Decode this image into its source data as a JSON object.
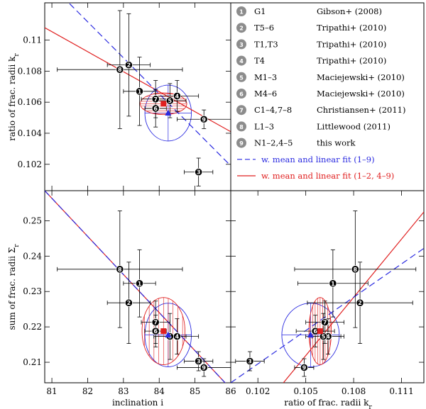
{
  "colors": {
    "fit_all": "#2a2ae0",
    "fit_sub": "#e02020",
    "ellipse_blue": "#2a2ae0",
    "ellipse_red": "#e02020",
    "marker": "#000000",
    "legend_badge": "#8c8c8c"
  },
  "legend": {
    "entries": [
      {
        "num": "1",
        "code": "G1",
        "ref": "Gibson+ (2008)"
      },
      {
        "num": "2",
        "code": "T5–6",
        "ref": "Tripathi+ (2010)"
      },
      {
        "num": "3",
        "code": "T1,T3",
        "ref": "Tripathi+ (2010)"
      },
      {
        "num": "4",
        "code": "T4",
        "ref": "Tripathi+ (2010)"
      },
      {
        "num": "5",
        "code": "M1–3",
        "ref": "Maciejewski+ (2010)"
      },
      {
        "num": "6",
        "code": "M4–6",
        "ref": "Maciejewski+ (2010)"
      },
      {
        "num": "7",
        "code": "C1–4,7–8",
        "ref": "Christiansen+ (2011)"
      },
      {
        "num": "8",
        "code": "L1–3",
        "ref": "Littlewood (2011)"
      },
      {
        "num": "9",
        "code": "N1–2,4–5",
        "ref": "this work"
      }
    ],
    "fit_all_label": "w. mean and linear fit (1–9)",
    "fit_sub_label": "w. mean and linear fit (1–2, 4–9)"
  },
  "chart_data": [
    {
      "type": "scatter",
      "panel": "top-left",
      "xlabel": "",
      "ylabel": "ratio of frac. radii k",
      "ylabel_sub": "r",
      "xlim": [
        80.8,
        86.0
      ],
      "ylim": [
        0.1003,
        0.1124
      ],
      "yticks": [
        0.102,
        0.104,
        0.106,
        0.108,
        0.11
      ],
      "ytick_labels": [
        "0.102",
        "0.104",
        "0.106",
        "0.108",
        "0.11"
      ],
      "points": [
        {
          "id": "1",
          "x": 83.45,
          "y": 0.1067,
          "xerr": 0.45,
          "yerr": 0.0022
        },
        {
          "id": "2",
          "x": 83.15,
          "y": 0.1084,
          "xerr": 0.6,
          "yerr": 0.0033
        },
        {
          "id": "3",
          "x": 85.1,
          "y": 0.1015,
          "xerr": 0.4,
          "yerr": 0.0009
        },
        {
          "id": "4",
          "x": 84.5,
          "y": 0.1064,
          "xerr": 0.6,
          "yerr": 0.001
        },
        {
          "id": "5",
          "x": 84.3,
          "y": 0.1061,
          "xerr": 0.45,
          "yerr": 0.0011
        },
        {
          "id": "6",
          "x": 83.9,
          "y": 0.1056,
          "xerr": 0.3,
          "yerr": 0.0012
        },
        {
          "id": "7",
          "x": 83.9,
          "y": 0.1062,
          "xerr": 0.4,
          "yerr": 0.0012
        },
        {
          "id": "8",
          "x": 82.9,
          "y": 0.1081,
          "xerr": 1.75,
          "yerr": 0.0038
        },
        {
          "id": "9",
          "x": 85.25,
          "y": 0.1049,
          "xerr": 0.75,
          "yerr": 0.0006
        }
      ],
      "mean_all": {
        "x": 84.25,
        "y": 0.1053
      },
      "mean_sub": {
        "x": 84.12,
        "y": 0.1059
      },
      "fit_all": {
        "x": [
          81.3,
          86.0
        ],
        "y": [
          0.1128,
          0.1019
        ]
      },
      "fit_sub": {
        "x": [
          80.8,
          86.0
        ],
        "y": [
          0.1108,
          0.1041
        ]
      },
      "ellipse_all": {
        "cx": 84.25,
        "cy": 0.1053,
        "rx": 0.65,
        "ry": 0.0018
      },
      "ellipse_sub": {
        "cx": 84.12,
        "cy": 0.1059,
        "rx": 0.65,
        "ry": 0.0007
      }
    },
    {
      "type": "scatter",
      "panel": "bottom-left",
      "xlabel": "inclination i",
      "ylabel": "sum of frac. radii Σ",
      "ylabel_sub": "r",
      "xlim": [
        80.8,
        86.0
      ],
      "ylim": [
        0.2042,
        0.2585
      ],
      "xticks": [
        81,
        82,
        83,
        84,
        85,
        86
      ],
      "xtick_labels": [
        "81",
        "82",
        "83",
        "84",
        "85",
        "86"
      ],
      "yticks": [
        0.21,
        0.22,
        0.23,
        0.24,
        0.25
      ],
      "ytick_labels": [
        "0.21",
        "0.22",
        "0.23",
        "0.24",
        "0.25"
      ],
      "points": [
        {
          "id": "1",
          "x": 83.45,
          "y": 0.2323,
          "xerr": 0.45,
          "yerr": 0.0095
        },
        {
          "id": "2",
          "x": 83.15,
          "y": 0.2268,
          "xerr": 0.6,
          "yerr": 0.0115
        },
        {
          "id": "3",
          "x": 85.1,
          "y": 0.2103,
          "xerr": 0.4,
          "yerr": 0.0027
        },
        {
          "id": "4",
          "x": 84.5,
          "y": 0.2173,
          "xerr": 0.6,
          "yerr": 0.005
        },
        {
          "id": "5",
          "x": 84.3,
          "y": 0.2173,
          "xerr": 0.45,
          "yerr": 0.0065
        },
        {
          "id": "6",
          "x": 83.9,
          "y": 0.2188,
          "xerr": 0.3,
          "yerr": 0.0045
        },
        {
          "id": "7",
          "x": 83.9,
          "y": 0.2213,
          "xerr": 0.4,
          "yerr": 0.006
        },
        {
          "id": "8",
          "x": 82.9,
          "y": 0.2363,
          "xerr": 1.75,
          "yerr": 0.0165
        },
        {
          "id": "9",
          "x": 85.25,
          "y": 0.2085,
          "xerr": 0.75,
          "yerr": 0.0025
        }
      ],
      "mean_all": {
        "x": 84.25,
        "y": 0.2177
      },
      "mean_sub": {
        "x": 84.12,
        "y": 0.2188
      },
      "fit_all": {
        "x": [
          80.8,
          86.0
        ],
        "y": [
          0.2585,
          0.2025
        ]
      },
      "fit_sub": {
        "x": [
          80.8,
          86.0
        ],
        "y": [
          0.2585,
          0.2025
        ]
      },
      "ellipse_all": {
        "cx": 84.25,
        "cy": 0.2177,
        "rx": 0.65,
        "ry": 0.009
      },
      "ellipse_sub": {
        "cx": 84.12,
        "cy": 0.2188,
        "rx": 0.6,
        "ry": 0.0095
      }
    },
    {
      "type": "scatter",
      "panel": "bottom-right",
      "xlabel": "ratio of frac. radii k",
      "xlabel_sub": "r",
      "ylabel": "",
      "xlim": [
        0.1003,
        0.1124
      ],
      "ylim": [
        0.2042,
        0.2585
      ],
      "xticks": [
        0.102,
        0.105,
        0.108,
        0.111
      ],
      "xtick_labels": [
        "0.102",
        "0.105",
        "0.108",
        "0.111"
      ],
      "points": [
        {
          "id": "1",
          "x": 0.1067,
          "y": 0.2323,
          "xerr": 0.0022,
          "yerr": 0.0095
        },
        {
          "id": "2",
          "x": 0.1084,
          "y": 0.2268,
          "xerr": 0.0033,
          "yerr": 0.0115
        },
        {
          "id": "3",
          "x": 0.1015,
          "y": 0.2103,
          "xerr": 0.0009,
          "yerr": 0.0027
        },
        {
          "id": "4",
          "x": 0.1064,
          "y": 0.2173,
          "xerr": 0.001,
          "yerr": 0.005
        },
        {
          "id": "5",
          "x": 0.1061,
          "y": 0.2173,
          "xerr": 0.0011,
          "yerr": 0.0065
        },
        {
          "id": "6",
          "x": 0.1056,
          "y": 0.2188,
          "xerr": 0.0012,
          "yerr": 0.0045
        },
        {
          "id": "7",
          "x": 0.1062,
          "y": 0.2213,
          "xerr": 0.0012,
          "yerr": 0.006
        },
        {
          "id": "8",
          "x": 0.1081,
          "y": 0.2363,
          "xerr": 0.0038,
          "yerr": 0.0165
        },
        {
          "id": "9",
          "x": 0.1049,
          "y": 0.2085,
          "xerr": 0.0006,
          "yerr": 0.0025
        }
      ],
      "mean_all": {
        "x": 0.1053,
        "y": 0.2177
      },
      "mean_sub": {
        "x": 0.1059,
        "y": 0.2188
      },
      "fit_all": {
        "x": [
          0.1003,
          0.1124
        ],
        "y": [
          0.2042,
          0.2422
        ]
      },
      "fit_sub": {
        "x": [
          0.1036,
          0.1124
        ],
        "y": [
          0.2042,
          0.2525
        ]
      },
      "ellipse_all": {
        "cx": 0.1053,
        "cy": 0.2177,
        "rx": 0.0018,
        "ry": 0.009
      },
      "ellipse_sub": {
        "cx": 0.1059,
        "cy": 0.2188,
        "rx": 0.0007,
        "ry": 0.0095
      }
    }
  ]
}
